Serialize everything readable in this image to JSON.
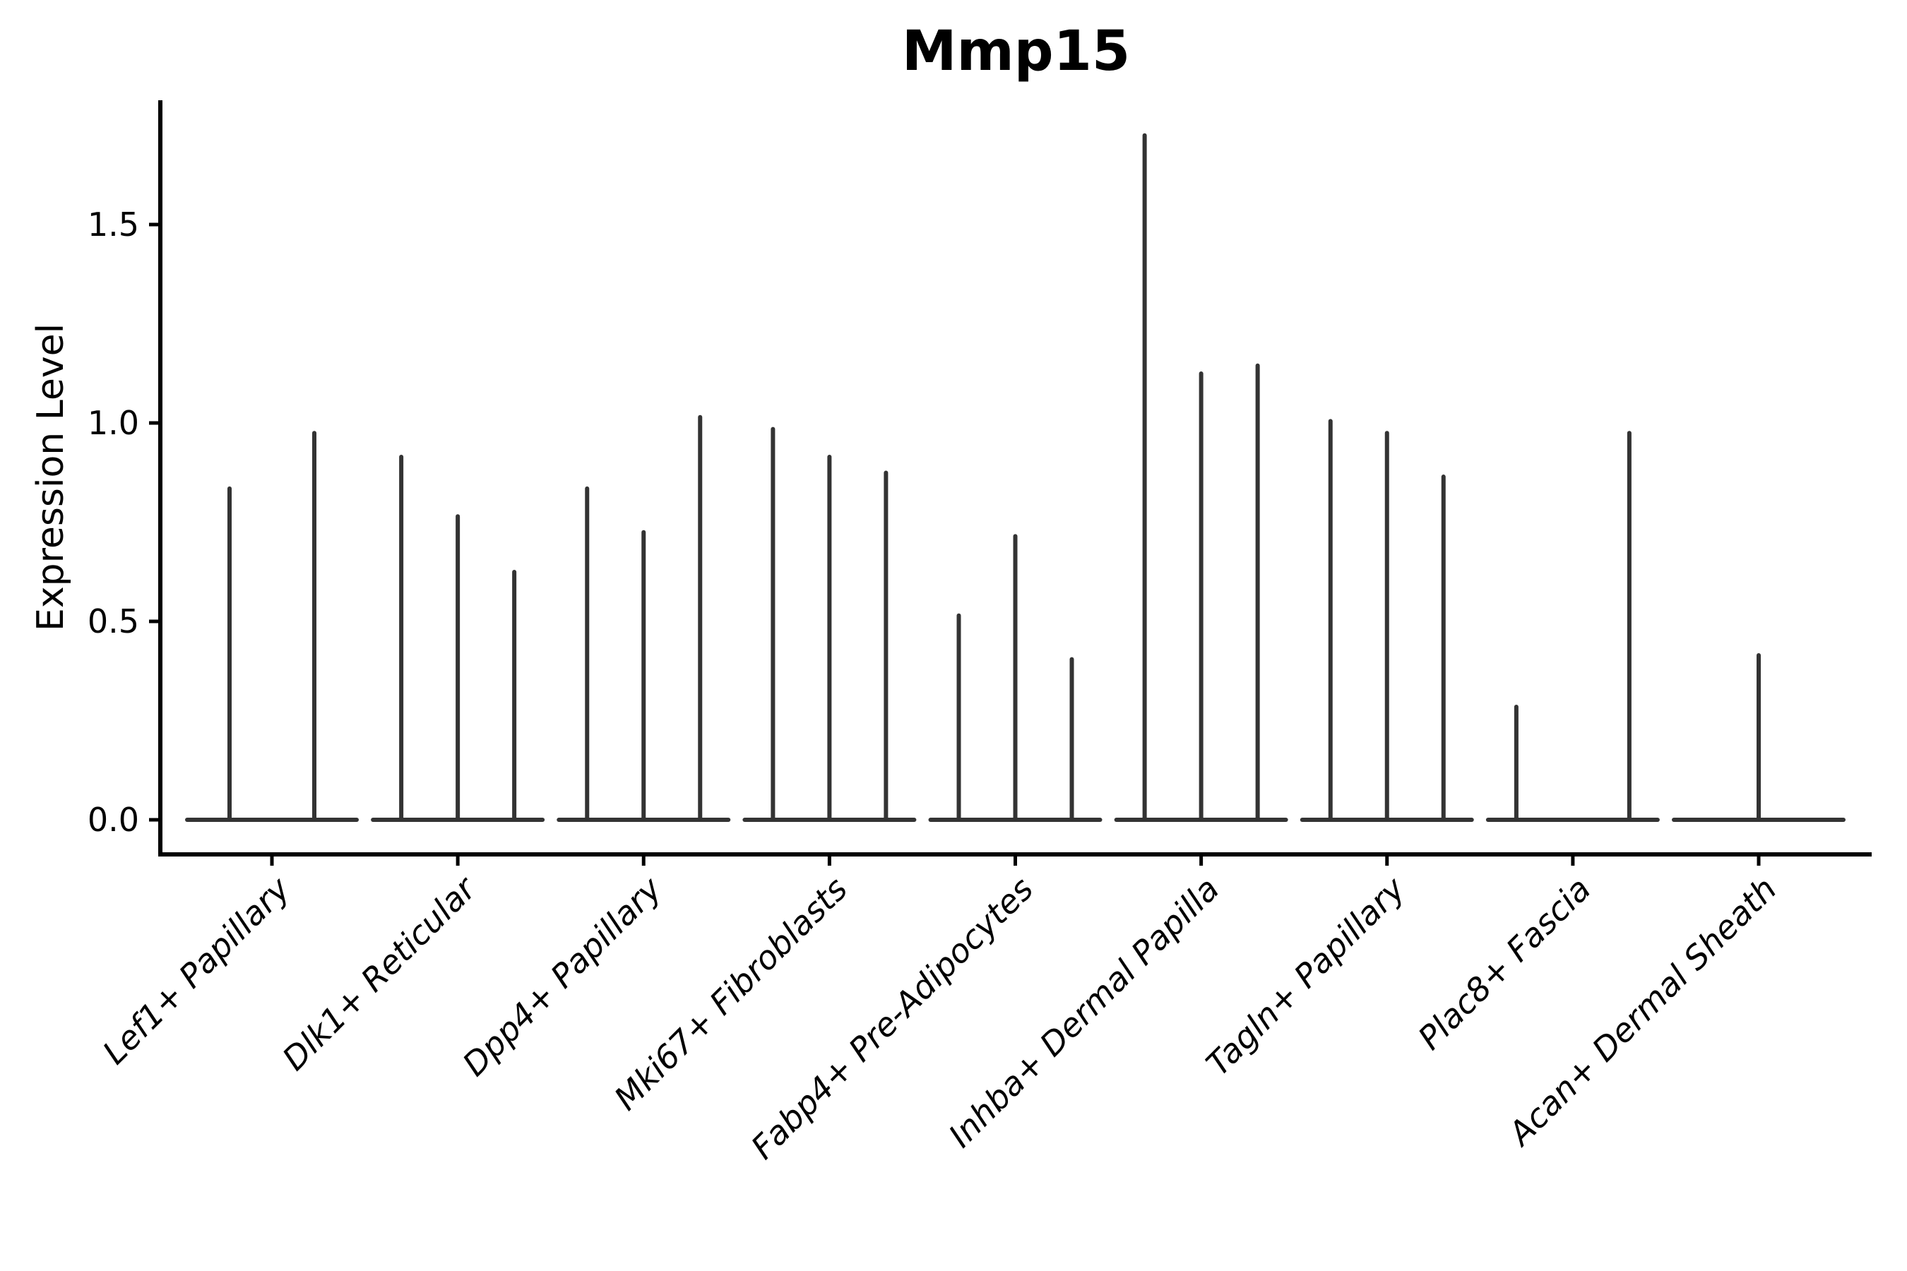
{
  "chart_data": {
    "type": "violin",
    "title": "Mmp15",
    "xlabel": "",
    "ylabel": "Expression Level",
    "yticks": [
      0,
      0.5,
      1,
      1.5
    ],
    "ytick_labels": [
      "0.0",
      "0.5",
      "1.0",
      "1.5"
    ],
    "ylim": [
      -0.09,
      1.81
    ],
    "grid": false,
    "legend": null,
    "axis_color": "#000000",
    "violin_color": "#333333",
    "categories": [
      {
        "label": "Lef1+ Papillary",
        "violin_max_expression": [
          0.84,
          0.98
        ]
      },
      {
        "label": "Dlk1+ Reticular",
        "violin_max_expression": [
          0.92,
          0.77,
          0.63
        ]
      },
      {
        "label": "Dpp4+ Papillary",
        "violin_max_expression": [
          0.84,
          0.73,
          1.02
        ]
      },
      {
        "label": "Mki67+ Fibroblasts",
        "violin_max_expression": [
          0.99,
          0.92,
          0.88
        ]
      },
      {
        "label": "Fabp4+ Pre-Adipocytes",
        "violin_max_expression": [
          0.52,
          0.72,
          0.41
        ]
      },
      {
        "label": "Inhba+ Dermal Papilla",
        "violin_max_expression": [
          1.73,
          1.13,
          1.15
        ]
      },
      {
        "label": "Tagln+ Papillary",
        "violin_max_expression": [
          1.01,
          0.98,
          0.87
        ]
      },
      {
        "label": "Plac8+ Fascia",
        "violin_max_expression": [
          0.29,
          0.0,
          0.98
        ]
      },
      {
        "label": "Acan+ Dermal Sheath",
        "violin_max_expression": [
          0.0,
          0.42,
          0.0
        ]
      }
    ]
  }
}
